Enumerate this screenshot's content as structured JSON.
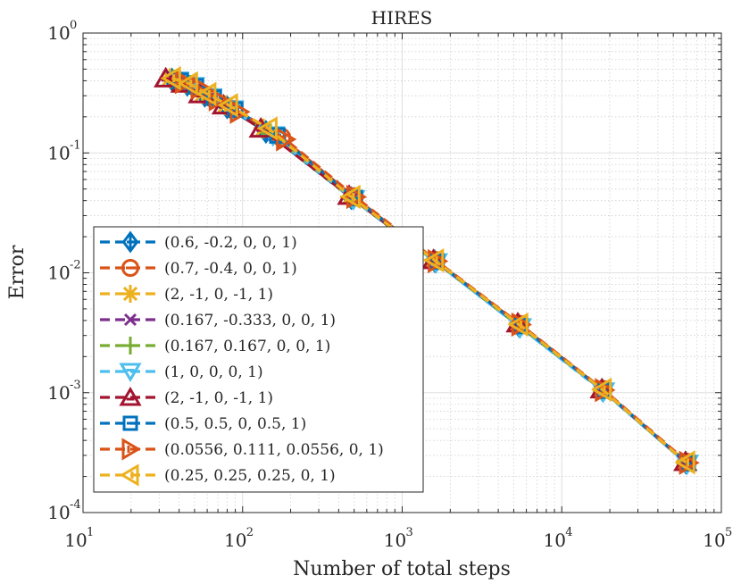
{
  "chart_data": {
    "type": "line",
    "title": "HIRES",
    "xlabel": "Number of total steps",
    "ylabel": "Error",
    "xscale": "log",
    "yscale": "log",
    "xlim": [
      10,
      100000
    ],
    "ylim": [
      0.0001,
      1
    ],
    "grid": "on (major and minor)",
    "legend_location": "southwest",
    "x_ticks": [
      {
        "base": "10",
        "exp": "1"
      },
      {
        "base": "10",
        "exp": "2"
      },
      {
        "base": "10",
        "exp": "3"
      },
      {
        "base": "10",
        "exp": "4"
      },
      {
        "base": "10",
        "exp": "5"
      }
    ],
    "y_ticks": [
      {
        "base": "10",
        "exp": "0"
      },
      {
        "base": "10",
        "exp": "-1"
      },
      {
        "base": "10",
        "exp": "-2"
      },
      {
        "base": "10",
        "exp": "-3"
      },
      {
        "base": "10",
        "exp": "-4"
      }
    ],
    "series": [
      {
        "name": "(0.6, -0.2, 0, 0, 1)",
        "color": "#0072BD",
        "marker": "diamond-plus",
        "x": [
          36,
          45,
          58,
          80,
          140,
          480,
          1600,
          5400,
          18000,
          60000
        ],
        "y": [
          0.41,
          0.37,
          0.3,
          0.24,
          0.15,
          0.042,
          0.0125,
          0.0036,
          0.00105,
          0.00026
        ]
      },
      {
        "name": "(0.7, -0.4, 0, 0, 1)",
        "color": "#D95319",
        "marker": "circle-minus",
        "x": [
          40,
          50,
          64,
          88,
          175,
          500,
          1620,
          5450,
          18100,
          60500
        ],
        "y": [
          0.4,
          0.36,
          0.29,
          0.23,
          0.135,
          0.043,
          0.0126,
          0.0037,
          0.00106,
          0.000262
        ]
      },
      {
        "name": "(2, -1, 0, -1, 1)",
        "color": "#EDB120",
        "marker": "asterisk",
        "x": [
          35,
          44,
          56,
          78,
          135,
          470,
          1580,
          5350,
          17900,
          59800
        ],
        "y": [
          0.42,
          0.38,
          0.31,
          0.25,
          0.16,
          0.043,
          0.0128,
          0.0038,
          0.00107,
          0.000265
        ]
      },
      {
        "name": "(0.167, -0.333, 0, 0, 1)",
        "color": "#7E2F8E",
        "marker": "x",
        "x": [
          38,
          48,
          62,
          85,
          160,
          490,
          1610,
          5420,
          18050,
          60200
        ],
        "y": [
          0.41,
          0.37,
          0.29,
          0.235,
          0.14,
          0.042,
          0.0125,
          0.0036,
          0.00105,
          0.00026
        ]
      },
      {
        "name": "(0.167, 0.167, 0, 0, 1)",
        "color": "#77AC30",
        "marker": "plus",
        "x": [
          37,
          47,
          61,
          84,
          150,
          485,
          1600,
          5400,
          18000,
          60000
        ],
        "y": [
          0.41,
          0.37,
          0.3,
          0.24,
          0.145,
          0.042,
          0.0125,
          0.0036,
          0.00105,
          0.00026
        ]
      },
      {
        "name": "(1, 0, 0, 0, 1)",
        "color": "#4DBEEE",
        "marker": "triangle-down-minus",
        "x": [
          39,
          49,
          63,
          86,
          155,
          495,
          1630,
          5480,
          18200,
          61000
        ],
        "y": [
          0.4,
          0.36,
          0.29,
          0.23,
          0.14,
          0.041,
          0.0122,
          0.0035,
          0.00102,
          0.000255
        ]
      },
      {
        "name": "(2, -1, 0, -1, 1)",
        "color": "#A2142F",
        "marker": "triangle-up-minus",
        "x": [
          33,
          42,
          54,
          76,
          130,
          465,
          1570,
          5300,
          17800,
          59500
        ],
        "y": [
          0.42,
          0.38,
          0.31,
          0.25,
          0.16,
          0.044,
          0.0128,
          0.0038,
          0.00107,
          0.000265
        ]
      },
      {
        "name": "(0.5, 0.5, 0, 0.5, 1)",
        "color": "#0072BD",
        "marker": "square-minus",
        "x": [
          41,
          51,
          66,
          90,
          165,
          505,
          1640,
          5500,
          18300,
          61500
        ],
        "y": [
          0.4,
          0.36,
          0.29,
          0.23,
          0.14,
          0.042,
          0.0124,
          0.0036,
          0.00104,
          0.000258
        ]
      },
      {
        "name": "(0.0556, 0.111, 0.0556, 0, 1)",
        "color": "#D95319",
        "marker": "triangle-right-minus",
        "x": [
          43,
          54,
          70,
          95,
          185,
          510,
          1650,
          5520,
          18400,
          62000
        ],
        "y": [
          0.39,
          0.35,
          0.28,
          0.22,
          0.13,
          0.043,
          0.0125,
          0.0037,
          0.00105,
          0.00026
        ]
      },
      {
        "name": "(0.25, 0.25, 0.25, 0, 1)",
        "color": "#EDB120",
        "marker": "triangle-left-minus",
        "x": [
          36,
          46,
          60,
          82,
          145,
          480,
          1600,
          5400,
          18000,
          60000
        ],
        "y": [
          0.42,
          0.38,
          0.31,
          0.25,
          0.16,
          0.043,
          0.0127,
          0.0037,
          0.00106,
          0.000262
        ]
      }
    ]
  }
}
